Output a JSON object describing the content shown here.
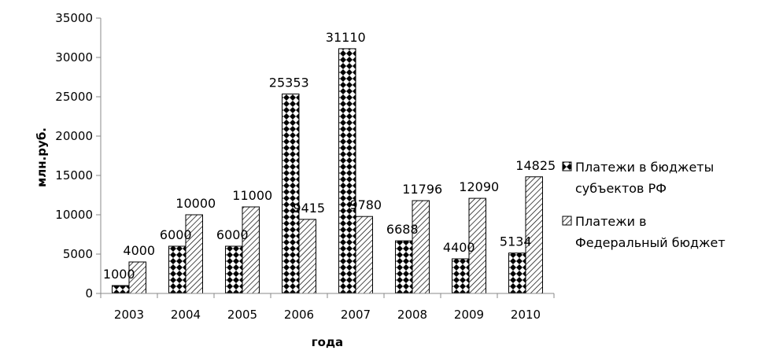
{
  "chart_data": {
    "type": "bar",
    "categories": [
      "2003",
      "2004",
      "2005",
      "2006",
      "2007",
      "2008",
      "2009",
      "2010"
    ],
    "series": [
      {
        "name": "Платежи в бюджеты субъектов РФ",
        "legend_lines": [
          "Платежи в бюджеты",
          "субъектов РФ"
        ],
        "values": [
          1000,
          6000,
          6000,
          25353,
          31110,
          6688,
          4400,
          5134
        ],
        "pattern": "checker-diamond"
      },
      {
        "name": "Платежи в Федеральный бюджет",
        "legend_lines": [
          "Платежи в",
          "Федеральный бюджет"
        ],
        "values": [
          4000,
          10000,
          11000,
          9415,
          9780,
          11796,
          12090,
          14825
        ],
        "pattern": "diagonal-hatch"
      }
    ],
    "title": "",
    "xlabel": "года",
    "ylabel": "млн.руб.",
    "ylim": [
      0,
      35000
    ],
    "yticks": [
      "0",
      "5000",
      "10000",
      "15000",
      "20000",
      "25000",
      "30000",
      "35000"
    ],
    "grid": false,
    "legend_position": "right"
  }
}
